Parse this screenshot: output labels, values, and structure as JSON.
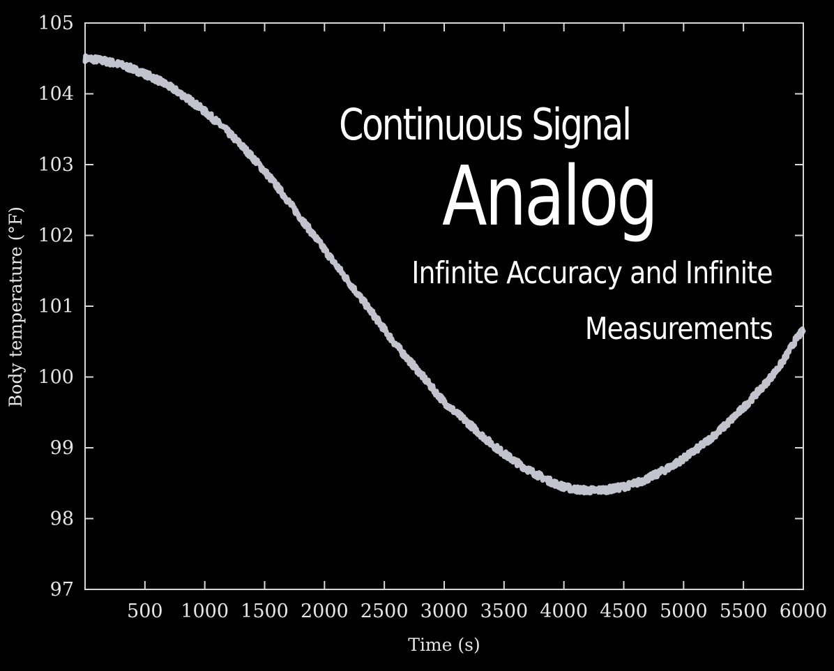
{
  "overlay": {
    "heading": "Continuous Signal",
    "title": "Analog",
    "line1": "Infinite Accuracy and Infinite",
    "line2": "Measurements"
  },
  "colors": {
    "background": "#000000",
    "axes": "#d9d9d9",
    "series": "#d4d4de",
    "text": "#e6e6e6",
    "overlay_text": "#ffffff"
  },
  "chart_data": {
    "type": "line",
    "title": "",
    "xlabel": "Time (s)",
    "ylabel": "Body temperature (°F)",
    "xlim": [
      0,
      6000
    ],
    "ylim": [
      97,
      105
    ],
    "xticks": [
      500,
      1000,
      1500,
      2000,
      2500,
      3000,
      3500,
      4000,
      4500,
      5000,
      5500,
      6000
    ],
    "yticks": [
      97,
      98,
      99,
      100,
      101,
      102,
      103,
      104,
      105
    ],
    "grid": false,
    "series": [
      {
        "x": [
          0,
          200,
          400,
          600,
          800,
          1000,
          1200,
          1400,
          1600,
          1800,
          2000,
          2200,
          2400,
          2600,
          2800,
          3000,
          3200,
          3400,
          3600,
          3800,
          4000,
          4200,
          4400,
          4600,
          4800,
          5000,
          5200,
          5400,
          5600,
          5800,
          6000
        ],
        "values": [
          104.5,
          104.45,
          104.35,
          104.2,
          104.0,
          103.75,
          103.45,
          103.1,
          102.7,
          102.25,
          101.8,
          101.35,
          100.9,
          100.45,
          100.05,
          99.65,
          99.35,
          99.05,
          98.8,
          98.6,
          98.45,
          98.4,
          98.42,
          98.5,
          98.65,
          98.85,
          99.1,
          99.4,
          99.75,
          100.15,
          100.65
        ]
      }
    ]
  }
}
